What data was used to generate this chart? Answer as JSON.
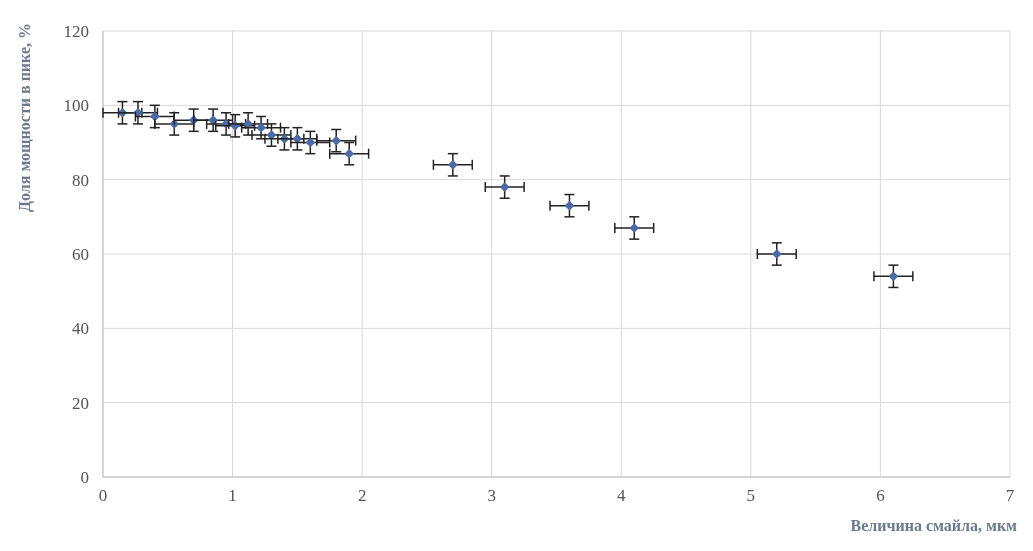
{
  "chart_data": {
    "type": "scatter",
    "xlabel": "Величина  смайла, мкм",
    "ylabel": "Доля мощности  в пике, %",
    "xlim": [
      0,
      7
    ],
    "xticks": [
      0,
      1,
      2,
      3,
      4,
      5,
      6,
      7
    ],
    "ylim": [
      0,
      120
    ],
    "yticks": [
      0,
      20,
      40,
      60,
      80,
      100,
      120
    ],
    "grid": true,
    "marker": "diamond",
    "series": [
      {
        "color": "#4a6aa8",
        "x": [
          0.15,
          0.27,
          0.4,
          0.55,
          0.7,
          0.85,
          0.95,
          1.02,
          1.12,
          1.22,
          1.3,
          1.4,
          1.5,
          1.6,
          1.8,
          1.9,
          2.7,
          3.1,
          3.6,
          4.1,
          5.2,
          6.1
        ],
        "values": [
          98,
          98,
          97,
          95,
          96,
          96,
          95,
          94.5,
          95,
          94,
          92,
          91,
          91,
          90,
          90.5,
          87,
          84,
          78,
          73,
          67,
          60,
          54
        ],
        "errors": [
          3,
          3,
          3,
          3,
          3,
          3,
          3,
          3,
          3,
          3,
          3,
          3,
          3,
          3,
          3,
          3,
          3,
          3,
          3,
          3,
          3,
          3
        ],
        "xerrors": [
          0.15,
          0.15,
          0.15,
          0.15,
          0.15,
          0.15,
          0.15,
          0.15,
          0.15,
          0.15,
          0.15,
          0.15,
          0.15,
          0.15,
          0.15,
          0.15,
          0.15,
          0.15,
          0.15,
          0.15,
          0.15,
          0.15
        ]
      }
    ]
  }
}
